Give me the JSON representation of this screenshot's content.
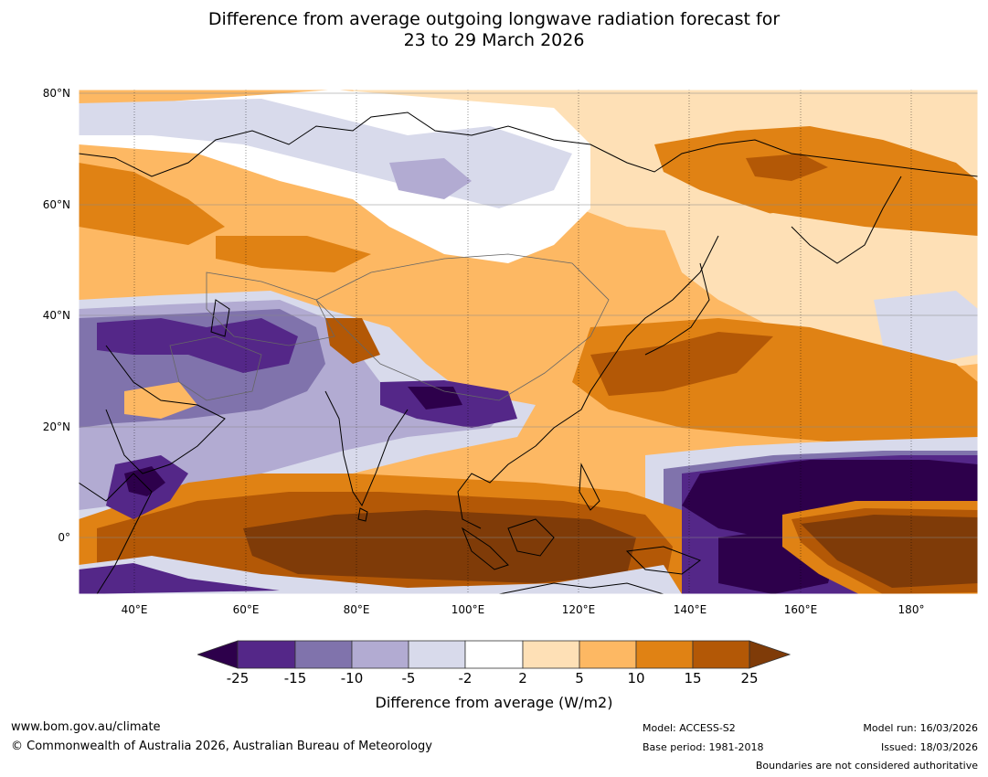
{
  "title_line1": "Difference from average outgoing longwave radiation forecast for",
  "title_line2": "23 to 29 March 2026",
  "map": {
    "lat_labels": [
      "80°N",
      "60°N",
      "40°N",
      "20°N",
      "0°"
    ],
    "lon_labels": [
      "40°E",
      "60°E",
      "80°E",
      "100°E",
      "120°E",
      "140°E",
      "160°E",
      "180°"
    ],
    "colors": {
      "dpurple": "#2d004b",
      "purple": "#542788",
      "mpurple": "#8073ac",
      "lpurple": "#b2abd2",
      "vlpurple": "#d8daeb",
      "white": "#ffffff",
      "vlorange": "#fee0b6",
      "lorange": "#fdb863",
      "orange": "#e08214",
      "dorange": "#b35806",
      "brown": "#7f3b08"
    }
  },
  "colorbar": {
    "ticks": [
      "-25",
      "-15",
      "-10",
      "-5",
      "-2",
      "2",
      "5",
      "10",
      "15",
      "25"
    ],
    "label": "Difference from average (W/m2)"
  },
  "footer": {
    "website": "www.bom.gov.au/climate",
    "copyright": "© Commonwealth of Australia 2026, Australian Bureau of Meteorology",
    "model": "Model: ACCESS-S2",
    "base_period": "Base period: 1981-2018",
    "model_run": "Model run: 16/03/2026",
    "issued": "Issued: 18/03/2026",
    "boundaries": "Boundaries are not considered authoritative"
  }
}
